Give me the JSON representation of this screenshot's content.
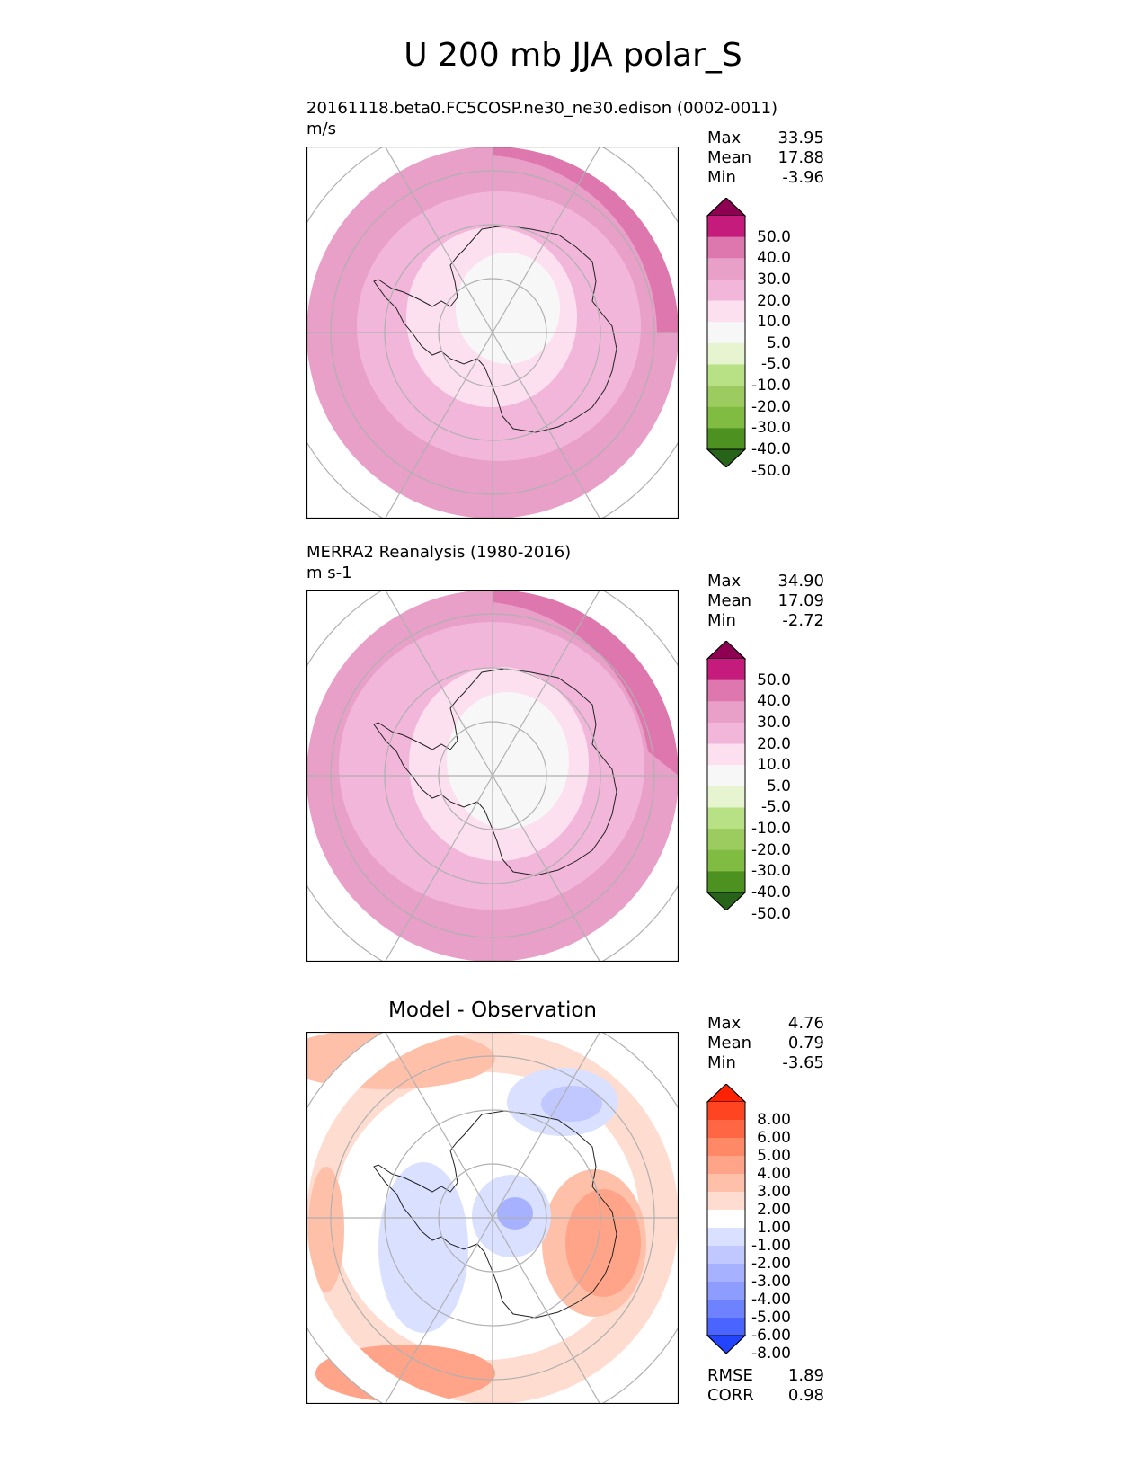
{
  "figure": {
    "title": "U 200 mb JJA polar_S"
  },
  "chart_data": [
    {
      "type": "heatmap",
      "projection": "south polar stereographic",
      "title": "20161118.beta0.FC5COSP.ne30_ne30.edison (0002-0011)",
      "units": "m/s",
      "stats": {
        "labels": [
          "Max",
          "Mean",
          "Min"
        ],
        "values": [
          "33.95",
          "17.88",
          "-3.96"
        ]
      },
      "colorbar": {
        "levels": [
          "50.0",
          "40.0",
          "30.0",
          "20.0",
          "10.0",
          "5.0",
          "-5.0",
          "-10.0",
          "-20.0",
          "-30.0",
          "-40.0",
          "-50.0"
        ],
        "colors": [
          "#8e0152",
          "#c51b7d",
          "#de77ae",
          "#e89fc8",
          "#f1b6da",
          "#fde0ef",
          "#f7f7f7",
          "#e6f5d0",
          "#b8e186",
          "#9ccc5f",
          "#7fbc41",
          "#4d9221",
          "#276419"
        ]
      },
      "field": {
        "description_bands": [
          {
            "level": "30-40",
            "color": "#de77ae"
          },
          {
            "level": "20-30",
            "color": "#e89fc8"
          },
          {
            "level": "10-20",
            "color": "#f1b6da"
          },
          {
            "level": "5-10",
            "color": "#fde0ef"
          },
          {
            "level": "-5-5",
            "color": "#f7f7f7"
          }
        ]
      }
    },
    {
      "type": "heatmap",
      "projection": "south polar stereographic",
      "title": "MERRA2 Reanalysis (1980-2016)",
      "units": "m s-1",
      "stats": {
        "labels": [
          "Max",
          "Mean",
          "Min"
        ],
        "values": [
          "34.90",
          "17.09",
          "-2.72"
        ]
      },
      "colorbar": {
        "levels": [
          "50.0",
          "40.0",
          "30.0",
          "20.0",
          "10.0",
          "5.0",
          "-5.0",
          "-10.0",
          "-20.0",
          "-30.0",
          "-40.0",
          "-50.0"
        ],
        "colors": [
          "#8e0152",
          "#c51b7d",
          "#de77ae",
          "#e89fc8",
          "#f1b6da",
          "#fde0ef",
          "#f7f7f7",
          "#e6f5d0",
          "#b8e186",
          "#9ccc5f",
          "#7fbc41",
          "#4d9221",
          "#276419"
        ]
      }
    },
    {
      "type": "heatmap",
      "projection": "south polar stereographic",
      "title": "Model - Observation",
      "stats": {
        "labels": [
          "Max",
          "Mean",
          "Min"
        ],
        "values": [
          "4.76",
          "0.79",
          "-3.65"
        ]
      },
      "metrics": {
        "labels": [
          "RMSE",
          "CORR"
        ],
        "values": [
          "1.89",
          "0.98"
        ]
      },
      "colorbar": {
        "levels": [
          "8.00",
          "6.00",
          "5.00",
          "4.00",
          "3.00",
          "2.00",
          "1.00",
          "-1.00",
          "-2.00",
          "-3.00",
          "-4.00",
          "-5.00",
          "-6.00",
          "-8.00"
        ],
        "colors": [
          "#ff2200",
          "#ff4422",
          "#ff6644",
          "#ff8866",
          "#ffa488",
          "#ffc0aa",
          "#ffdcd0",
          "#ffffff",
          "#dae0ff",
          "#c0c8ff",
          "#a6b2ff",
          "#8c9cff",
          "#6e82ff",
          "#4a64ff",
          "#2244ff"
        ]
      }
    }
  ]
}
